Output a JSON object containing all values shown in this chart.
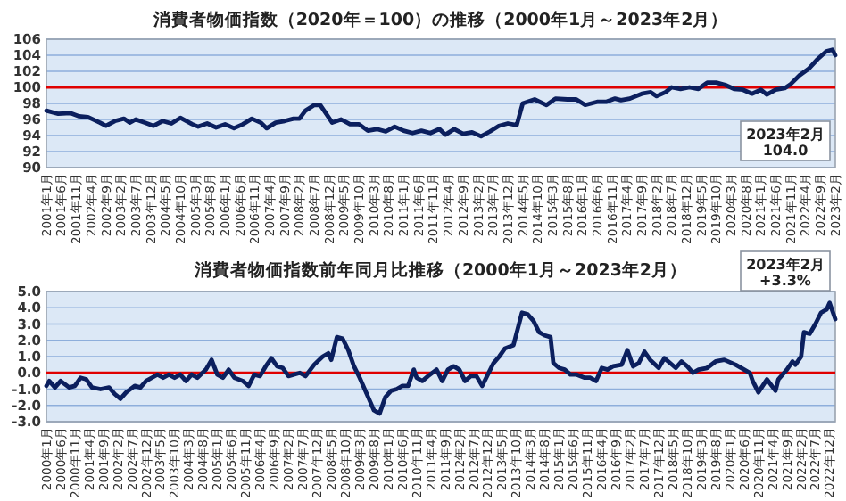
{
  "chart_data": [
    {
      "type": "line",
      "title": "消費者物価指数（2020年＝100）の推移（2000年1月～2023年2月）",
      "color": "#0b1f5e",
      "grid": "y",
      "x": [
        "2001-01",
        "2001-05",
        "2001-09",
        "2001-12",
        "2002-03",
        "2002-07",
        "2002-09",
        "2002-12",
        "2003-03",
        "2003-05",
        "2003-07",
        "2003-10",
        "2004-01",
        "2004-04",
        "2004-07",
        "2004-10",
        "2005-02",
        "2005-04",
        "2005-07",
        "2005-10",
        "2006-01",
        "2006-04",
        "2006-07",
        "2006-10",
        "2007-01",
        "2007-03",
        "2007-06",
        "2007-09",
        "2007-12",
        "2008-02",
        "2008-04",
        "2008-07",
        "2008-09",
        "2008-11",
        "2009-01",
        "2009-04",
        "2009-07",
        "2009-10",
        "2010-01",
        "2010-04",
        "2010-07",
        "2010-10",
        "2011-01",
        "2011-04",
        "2011-07",
        "2011-10",
        "2012-01",
        "2012-03",
        "2012-06",
        "2012-09",
        "2012-12",
        "2013-03",
        "2013-06",
        "2013-09",
        "2013-12",
        "2014-03",
        "2014-05",
        "2014-09",
        "2015-01",
        "2015-04",
        "2015-08",
        "2015-11",
        "2016-02",
        "2016-06",
        "2016-09",
        "2016-12",
        "2017-02",
        "2017-05",
        "2017-09",
        "2017-12",
        "2018-02",
        "2018-05",
        "2018-07",
        "2018-10",
        "2019-01",
        "2019-04",
        "2019-07",
        "2019-10",
        "2020-01",
        "2020-04",
        "2020-07",
        "2020-10",
        "2021-01",
        "2021-03",
        "2021-06",
        "2021-09",
        "2021-11",
        "2022-02",
        "2022-05",
        "2022-08",
        "2022-11",
        "2023-01",
        "2023-02"
      ],
      "values": [
        97.1,
        96.7,
        96.8,
        96.4,
        96.3,
        95.6,
        95.2,
        95.8,
        96.1,
        95.6,
        96.0,
        95.6,
        95.2,
        95.8,
        95.5,
        96.2,
        95.4,
        95.1,
        95.5,
        95.0,
        95.4,
        94.9,
        95.4,
        96.1,
        95.6,
        94.9,
        95.6,
        95.8,
        96.1,
        96.1,
        97.1,
        97.8,
        97.8,
        96.7,
        95.6,
        96.0,
        95.4,
        95.4,
        94.6,
        94.8,
        94.5,
        95.1,
        94.6,
        94.3,
        94.6,
        94.3,
        94.8,
        94.1,
        94.8,
        94.2,
        94.4,
        93.9,
        94.5,
        95.2,
        95.5,
        95.3,
        98.0,
        98.5,
        97.8,
        98.6,
        98.5,
        98.5,
        97.8,
        98.2,
        98.2,
        98.6,
        98.4,
        98.6,
        99.2,
        99.4,
        98.9,
        99.4,
        100.0,
        99.8,
        100.0,
        99.8,
        100.6,
        100.6,
        100.3,
        99.8,
        99.7,
        99.2,
        99.7,
        99.1,
        99.7,
        99.9,
        100.4,
        101.5,
        102.3,
        103.5,
        104.5,
        104.7,
        104.0
      ],
      "xlim": [
        "2001-01",
        "2023-02"
      ],
      "ylim": [
        90,
        106
      ],
      "yticks": [
        90,
        92,
        94,
        96,
        98,
        100,
        102,
        104,
        106
      ],
      "xticks": [
        {
          "value": "2001-01",
          "label": "2001年1月"
        },
        {
          "value": "2001-06",
          "label": "2001年6月"
        },
        {
          "value": "2001-11",
          "label": "2001年11月"
        },
        {
          "value": "2002-04",
          "label": "2002年4月"
        },
        {
          "value": "2002-09",
          "label": "2002年9月"
        },
        {
          "value": "2003-02",
          "label": "2003年2月"
        },
        {
          "value": "2003-07",
          "label": "2003年7月"
        },
        {
          "value": "2003-12",
          "label": "2003年12月"
        },
        {
          "value": "2004-05",
          "label": "2004年5月"
        },
        {
          "value": "2004-10",
          "label": "2004年10月"
        },
        {
          "value": "2005-03",
          "label": "2005年3月"
        },
        {
          "value": "2005-08",
          "label": "2005年8月"
        },
        {
          "value": "2006-01",
          "label": "2006年1月"
        },
        {
          "value": "2006-06",
          "label": "2006年6月"
        },
        {
          "value": "2006-11",
          "label": "2006年11月"
        },
        {
          "value": "2007-04",
          "label": "2007年4月"
        },
        {
          "value": "2007-09",
          "label": "2007年9月"
        },
        {
          "value": "2008-02",
          "label": "2008年2月"
        },
        {
          "value": "2008-07",
          "label": "2008年7月"
        },
        {
          "value": "2008-12",
          "label": "2008年12月"
        },
        {
          "value": "2009-05",
          "label": "2009年5月"
        },
        {
          "value": "2009-10",
          "label": "2009年10月"
        },
        {
          "value": "2010-03",
          "label": "2010年3月"
        },
        {
          "value": "2010-08",
          "label": "2010年8月"
        },
        {
          "value": "2011-01",
          "label": "2011年1月"
        },
        {
          "value": "2011-06",
          "label": "2011年6月"
        },
        {
          "value": "2011-11",
          "label": "2011年11月"
        },
        {
          "value": "2012-04",
          "label": "2012年4月"
        },
        {
          "value": "2012-09",
          "label": "2012年9月"
        },
        {
          "value": "2013-02",
          "label": "2013年2月"
        },
        {
          "value": "2013-07",
          "label": "2013年7月"
        },
        {
          "value": "2013-12",
          "label": "2013年12月"
        },
        {
          "value": "2014-05",
          "label": "2014年5月"
        },
        {
          "value": "2014-10",
          "label": "2014年10月"
        },
        {
          "value": "2015-03",
          "label": "2015年3月"
        },
        {
          "value": "2015-08",
          "label": "2015年8月"
        },
        {
          "value": "2016-01",
          "label": "2016年1月"
        },
        {
          "value": "2016-06",
          "label": "2016年6月"
        },
        {
          "value": "2016-11",
          "label": "2016年11月"
        },
        {
          "value": "2017-04",
          "label": "2017年4月"
        },
        {
          "value": "2017-09",
          "label": "2017年9月"
        },
        {
          "value": "2018-02",
          "label": "2018年2月"
        },
        {
          "value": "2018-07",
          "label": "2018年7月"
        },
        {
          "value": "2018-12",
          "label": "2018年12月"
        },
        {
          "value": "2019-05",
          "label": "2019年5月"
        },
        {
          "value": "2019-10",
          "label": "2019年10月"
        },
        {
          "value": "2020-03",
          "label": "2020年3月"
        },
        {
          "value": "2020-08",
          "label": "2020年8月"
        },
        {
          "value": "2021-01",
          "label": "2021年1月"
        },
        {
          "value": "2021-06",
          "label": "2021年6月"
        },
        {
          "value": "2021-11",
          "label": "2021年11月"
        },
        {
          "value": "2022-04",
          "label": "2022年4月"
        },
        {
          "value": "2022-09",
          "label": "2022年9月"
        },
        {
          "value": "2023-02",
          "label": "2023年2月"
        }
      ],
      "ref_lines": [
        {
          "axis": "y",
          "value": 100,
          "color": "#e00000"
        }
      ],
      "annotations": [
        "2023年2月\n104.0"
      ]
    },
    {
      "type": "line",
      "title": "消費者物価指数前年同月比推移（2000年1月～2023年2月）",
      "color": "#0b1f5e",
      "grid": "y",
      "x": [
        "2000-01",
        "2000-02",
        "2000-04",
        "2000-06",
        "2000-09",
        "2000-11",
        "2001-01",
        "2001-03",
        "2001-05",
        "2001-08",
        "2001-11",
        "2002-01",
        "2002-03",
        "2002-05",
        "2002-08",
        "2002-10",
        "2002-12",
        "2003-02",
        "2003-04",
        "2003-06",
        "2003-08",
        "2003-10",
        "2003-12",
        "2004-02",
        "2004-04",
        "2004-06",
        "2004-09",
        "2004-11",
        "2005-01",
        "2005-03",
        "2005-05",
        "2005-07",
        "2005-10",
        "2005-12",
        "2006-02",
        "2006-04",
        "2006-06",
        "2006-08",
        "2006-10",
        "2006-12",
        "2007-02",
        "2007-06",
        "2007-08",
        "2007-11",
        "2008-02",
        "2008-04",
        "2008-05",
        "2008-07",
        "2008-09",
        "2008-11",
        "2009-01",
        "2009-03",
        "2009-06",
        "2009-08",
        "2009-10",
        "2009-12",
        "2010-02",
        "2010-04",
        "2010-06",
        "2010-08",
        "2010-10",
        "2010-11",
        "2011-01",
        "2011-03",
        "2011-06",
        "2011-08",
        "2011-10",
        "2011-12",
        "2012-02",
        "2012-04",
        "2012-06",
        "2012-08",
        "2012-10",
        "2012-12",
        "2013-02",
        "2013-04",
        "2013-06",
        "2013-09",
        "2013-12",
        "2014-02",
        "2014-04",
        "2014-06",
        "2014-08",
        "2014-10",
        "2014-11",
        "2015-01",
        "2015-03",
        "2015-05",
        "2015-07",
        "2015-10",
        "2015-12",
        "2016-02",
        "2016-04",
        "2016-06",
        "2016-08",
        "2016-11",
        "2017-01",
        "2017-03",
        "2017-05",
        "2017-07",
        "2017-09",
        "2017-12",
        "2018-02",
        "2018-04",
        "2018-06",
        "2018-08",
        "2018-10",
        "2018-12",
        "2019-02",
        "2019-05",
        "2019-08",
        "2019-11",
        "2020-03",
        "2020-06",
        "2020-08",
        "2020-09",
        "2020-11",
        "2021-02",
        "2021-05",
        "2021-06",
        "2021-09",
        "2021-11",
        "2021-12",
        "2022-02",
        "2022-03",
        "2022-05",
        "2022-07",
        "2022-09",
        "2022-11",
        "2022-12",
        "2023-02"
      ],
      "values": [
        -0.8,
        -0.5,
        -0.9,
        -0.5,
        -0.9,
        -0.8,
        -0.3,
        -0.4,
        -0.9,
        -1.0,
        -0.9,
        -1.3,
        -1.6,
        -1.2,
        -0.8,
        -0.9,
        -0.5,
        -0.3,
        -0.1,
        -0.3,
        -0.1,
        -0.3,
        -0.1,
        -0.5,
        -0.1,
        -0.3,
        0.2,
        0.8,
        -0.1,
        -0.3,
        0.2,
        -0.3,
        -0.5,
        -0.8,
        -0.1,
        -0.2,
        0.4,
        0.9,
        0.4,
        0.3,
        -0.2,
        0.0,
        -0.2,
        0.5,
        1.0,
        1.2,
        0.8,
        2.2,
        2.1,
        1.4,
        0.4,
        -0.3,
        -1.5,
        -2.3,
        -2.5,
        -1.5,
        -1.1,
        -1.0,
        -0.8,
        -0.8,
        0.2,
        -0.3,
        -0.5,
        -0.2,
        0.2,
        -0.5,
        0.2,
        0.4,
        0.2,
        -0.5,
        -0.2,
        -0.2,
        -0.8,
        -0.1,
        0.6,
        1.0,
        1.5,
        1.7,
        3.7,
        3.6,
        3.2,
        2.5,
        2.3,
        2.2,
        0.6,
        0.3,
        0.2,
        -0.1,
        -0.1,
        -0.3,
        -0.3,
        -0.5,
        0.3,
        0.2,
        0.4,
        0.5,
        1.4,
        0.4,
        0.6,
        1.3,
        0.8,
        0.3,
        0.9,
        0.6,
        0.3,
        0.7,
        0.4,
        0.0,
        0.2,
        0.3,
        0.7,
        0.8,
        0.5,
        0.2,
        0.0,
        -0.5,
        -1.2,
        -0.4,
        -1.1,
        -0.4,
        0.2,
        0.7,
        0.5,
        1.0,
        2.5,
        2.4,
        3.0,
        3.7,
        3.9,
        4.3,
        3.3
      ],
      "xlim": [
        "2000-01",
        "2023-02"
      ],
      "ylim": [
        -3,
        5
      ],
      "yticks": [
        {
          "value": -3,
          "label": "-3.0"
        },
        {
          "value": -2,
          "label": "-2.0"
        },
        {
          "value": -1,
          "label": "-1.0"
        },
        {
          "value": 0,
          "label": "0.0"
        },
        {
          "value": 1,
          "label": "1.0"
        },
        {
          "value": 2,
          "label": "2.0"
        },
        {
          "value": 3,
          "label": "3.0"
        },
        {
          "value": 4,
          "label": "4.0"
        },
        {
          "value": 5,
          "label": "5.0"
        }
      ],
      "xticks": [
        {
          "value": "2000-01",
          "label": "2000年1月"
        },
        {
          "value": "2000-06",
          "label": "2000年6月"
        },
        {
          "value": "2000-11",
          "label": "2000年11月"
        },
        {
          "value": "2001-04",
          "label": "2001年4月"
        },
        {
          "value": "2001-09",
          "label": "2001年9月"
        },
        {
          "value": "2002-02",
          "label": "2002年2月"
        },
        {
          "value": "2002-07",
          "label": "2002年7月"
        },
        {
          "value": "2002-12",
          "label": "2002年12月"
        },
        {
          "value": "2003-05",
          "label": "2003年5月"
        },
        {
          "value": "2003-10",
          "label": "2003年10月"
        },
        {
          "value": "2004-03",
          "label": "2004年3月"
        },
        {
          "value": "2004-08",
          "label": "2004年8月"
        },
        {
          "value": "2005-01",
          "label": "2005年1月"
        },
        {
          "value": "2005-06",
          "label": "2005年6月"
        },
        {
          "value": "2005-11",
          "label": "2005年11月"
        },
        {
          "value": "2006-04",
          "label": "2006年4月"
        },
        {
          "value": "2006-09",
          "label": "2006年9月"
        },
        {
          "value": "2007-02",
          "label": "2007年2月"
        },
        {
          "value": "2007-07",
          "label": "2007年7月"
        },
        {
          "value": "2007-12",
          "label": "2007年12月"
        },
        {
          "value": "2008-05",
          "label": "2008年5月"
        },
        {
          "value": "2008-10",
          "label": "2008年10月"
        },
        {
          "value": "2009-03",
          "label": "2009年3月"
        },
        {
          "value": "2009-08",
          "label": "2009年8月"
        },
        {
          "value": "2010-01",
          "label": "2010年1月"
        },
        {
          "value": "2010-06",
          "label": "2010年6月"
        },
        {
          "value": "2010-11",
          "label": "2010年11月"
        },
        {
          "value": "2011-04",
          "label": "2011年4月"
        },
        {
          "value": "2011-09",
          "label": "2011年9月"
        },
        {
          "value": "2012-02",
          "label": "2012年2月"
        },
        {
          "value": "2012-07",
          "label": "2012年7月"
        },
        {
          "value": "2012-12",
          "label": "2012年12月"
        },
        {
          "value": "2013-05",
          "label": "2013年5月"
        },
        {
          "value": "2013-10",
          "label": "2013年10月"
        },
        {
          "value": "2014-03",
          "label": "2014年3月"
        },
        {
          "value": "2014-08",
          "label": "2014年8月"
        },
        {
          "value": "2015-01",
          "label": "2015年1月"
        },
        {
          "value": "2015-06",
          "label": "2015年6月"
        },
        {
          "value": "2015-11",
          "label": "2015年11月"
        },
        {
          "value": "2016-04",
          "label": "2016年4月"
        },
        {
          "value": "2016-09",
          "label": "2016年9月"
        },
        {
          "value": "2017-02",
          "label": "2017年2月"
        },
        {
          "value": "2017-07",
          "label": "2017年7月"
        },
        {
          "value": "2017-12",
          "label": "2017年12月"
        },
        {
          "value": "2018-05",
          "label": "2018年5月"
        },
        {
          "value": "2018-10",
          "label": "2018年10月"
        },
        {
          "value": "2019-03",
          "label": "2019年3月"
        },
        {
          "value": "2019-08",
          "label": "2019年8月"
        },
        {
          "value": "2020-01",
          "label": "2020年1月"
        },
        {
          "value": "2020-06",
          "label": "2020年6月"
        },
        {
          "value": "2020-11",
          "label": "2020年11月"
        },
        {
          "value": "2021-04",
          "label": "2021年4月"
        },
        {
          "value": "2021-09",
          "label": "2021年9月"
        },
        {
          "value": "2022-02",
          "label": "2022年2月"
        },
        {
          "value": "2022-07",
          "label": "2022年7月"
        },
        {
          "value": "2022-12",
          "label": "2022年12月"
        }
      ],
      "ref_lines": [
        {
          "axis": "y",
          "value": 0,
          "color": "#e00000"
        }
      ],
      "annotations": [
        "2023年2月\n+3.3%"
      ]
    }
  ]
}
